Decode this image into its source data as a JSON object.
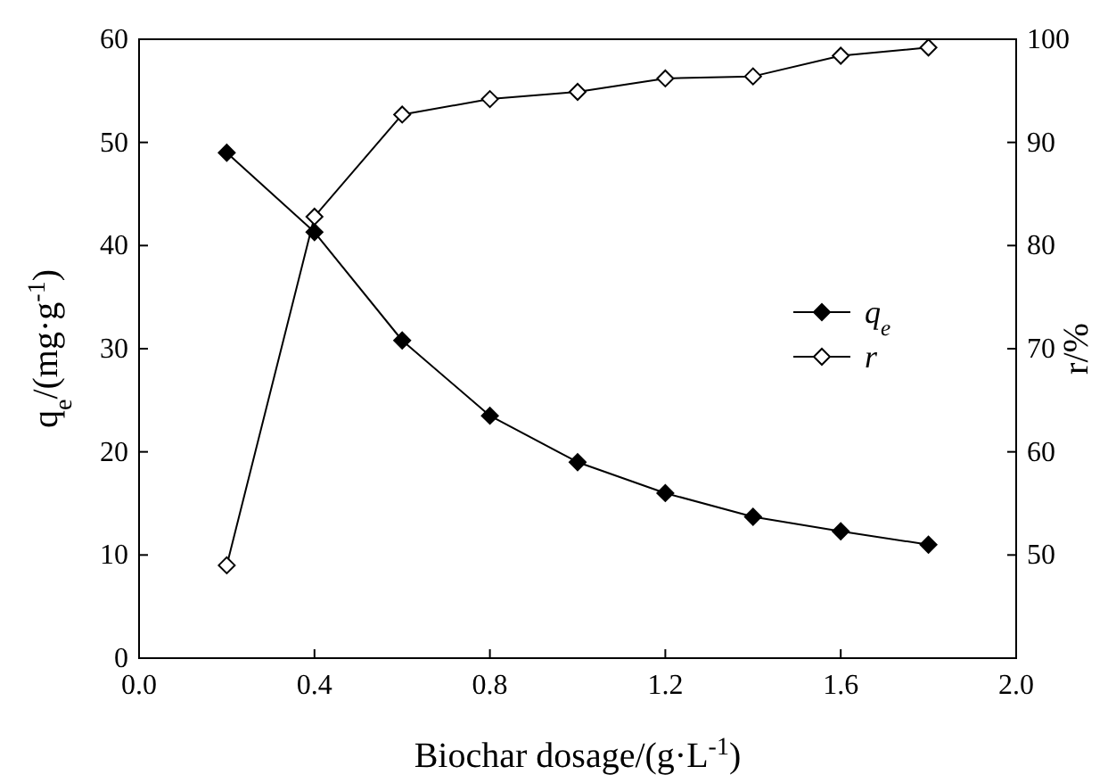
{
  "chart_data": {
    "type": "line",
    "xlabel": "Biochar dosage/(g·L$^{-1}$)",
    "ylabel": "q$_{e}$/(mg·g$^{-1}$)",
    "y2label": "r/%",
    "x": [
      0.2,
      0.4,
      0.6,
      0.8,
      1.0,
      1.2,
      1.4,
      1.6,
      1.8
    ],
    "series": [
      {
        "name": "q$_{e}$",
        "color": "#000000",
        "values": [
          49,
          41.3,
          30.8,
          23.5,
          19,
          16,
          13.7,
          12.3,
          11
        ]
      },
      {
        "name": "r",
        "color": "#000000",
        "axis": "y2",
        "values": [
          49,
          82.8,
          92.7,
          94.2,
          94.9,
          96.2,
          96.4,
          98.4,
          99.2
        ]
      }
    ],
    "xlim": [
      0,
      2
    ],
    "xticks": [
      {
        "value": 0,
        "label": "0.0"
      },
      {
        "value": 0.4,
        "label": "0.4"
      },
      {
        "value": 0.8,
        "label": "0.8"
      },
      {
        "value": 1.2,
        "label": "1.2"
      },
      {
        "value": 1.6,
        "label": "1.6"
      },
      {
        "value": 2,
        "label": "2.0"
      }
    ],
    "ylim": [
      0,
      60
    ],
    "yticks": [
      0,
      10,
      20,
      30,
      40,
      50,
      60
    ],
    "y2lim": [
      40,
      100
    ],
    "y2ticks": [
      50,
      60,
      70,
      80,
      90,
      100
    ],
    "marker": "diamond",
    "line_style": "solid",
    "grid": false,
    "legend": "right"
  }
}
